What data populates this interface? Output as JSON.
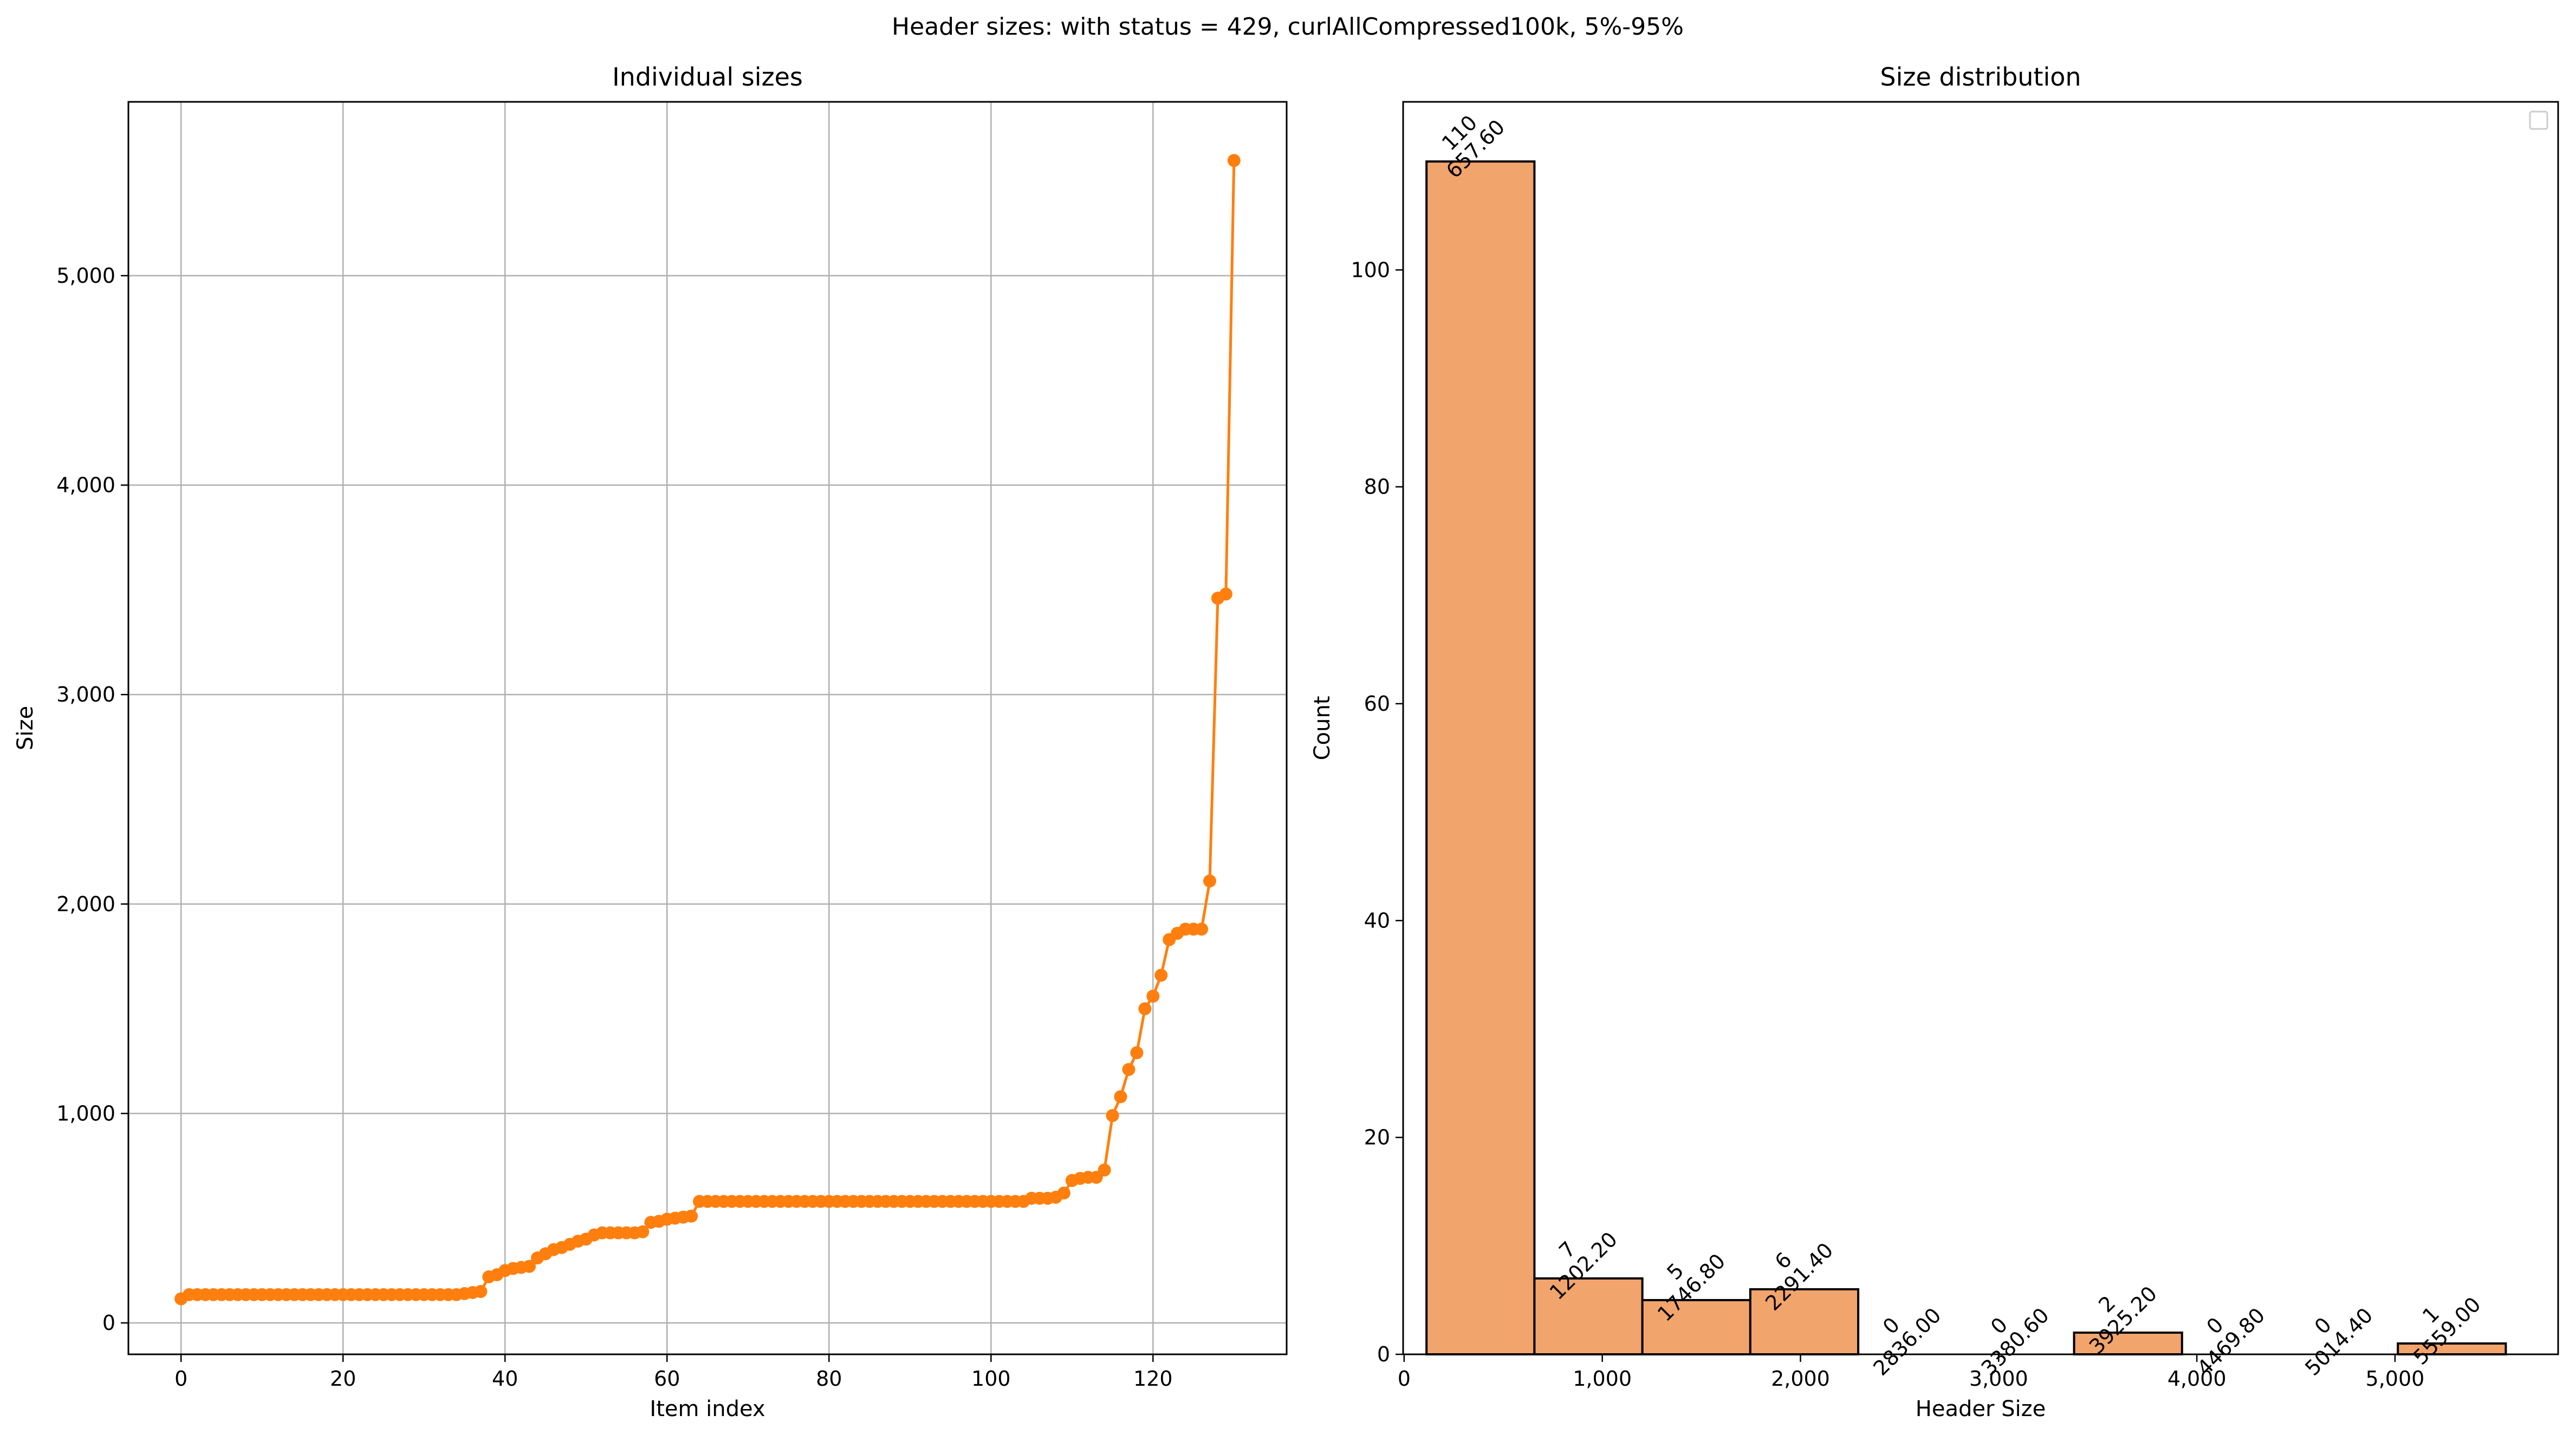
{
  "figure_title": "Header sizes: with status = 429, curlAllCompressed100k, 5%-95%",
  "colors": {
    "line": "#ff7f0e",
    "bar_fill": "#f2a46d",
    "bar_edge": "#000000",
    "grid": "#b0b0b0",
    "axes": "#000000"
  },
  "chart_data": [
    {
      "type": "line",
      "title": "Individual sizes",
      "xlabel": "Item index",
      "ylabel": "Size",
      "xlim": [
        -6.5,
        136.5
      ],
      "ylim": [
        -150,
        5830
      ],
      "xticks": [
        0,
        20,
        40,
        60,
        80,
        100,
        120
      ],
      "xtick_labels": [
        "0",
        "20",
        "40",
        "60",
        "80",
        "100",
        "120"
      ],
      "yticks": [
        0,
        1000,
        2000,
        3000,
        4000,
        5000
      ],
      "ytick_labels": [
        "0",
        "1,000",
        "2,000",
        "3,000",
        "4,000",
        "5,000"
      ],
      "grid": true,
      "marker": "circle",
      "series": [
        {
          "values": [
            115,
            135,
            135,
            135,
            135,
            135,
            135,
            135,
            135,
            135,
            135,
            135,
            135,
            135,
            135,
            135,
            135,
            135,
            135,
            135,
            135,
            135,
            135,
            135,
            135,
            135,
            135,
            135,
            135,
            135,
            135,
            135,
            135,
            135,
            135,
            140,
            145,
            150,
            220,
            230,
            250,
            260,
            265,
            270,
            310,
            330,
            350,
            360,
            375,
            390,
            400,
            420,
            430,
            430,
            430,
            430,
            430,
            435,
            480,
            485,
            495,
            500,
            505,
            510,
            580,
            580,
            580,
            580,
            580,
            580,
            580,
            580,
            580,
            580,
            580,
            580,
            580,
            580,
            580,
            580,
            580,
            580,
            580,
            580,
            580,
            580,
            580,
            580,
            580,
            580,
            580,
            580,
            580,
            580,
            580,
            580,
            580,
            580,
            580,
            580,
            580,
            580,
            580,
            580,
            580,
            595,
            595,
            595,
            600,
            620,
            680,
            690,
            695,
            695,
            730,
            990,
            1080,
            1210,
            1290,
            1500,
            1560,
            1660,
            1830,
            1860,
            1880,
            1880,
            1880,
            2110,
            3460,
            3480,
            5550
          ]
        }
      ]
    },
    {
      "type": "bar",
      "title": "Size distribution",
      "xlabel": "Header Size",
      "ylabel": "Count",
      "xlim": [
        -5,
        5823
      ],
      "ylim": [
        0,
        115.5
      ],
      "xticks": [
        0,
        1000,
        2000,
        3000,
        4000,
        5000
      ],
      "xtick_labels": [
        "0",
        "1,000",
        "2,000",
        "3,000",
        "4,000",
        "5,000"
      ],
      "yticks": [
        0,
        20,
        40,
        60,
        80,
        100
      ],
      "ytick_labels": [
        "0",
        "20",
        "40",
        "60",
        "80",
        "100"
      ],
      "grid": false,
      "legend": "top-right",
      "bin_edges": [
        113,
        657.6,
        1202.2,
        1746.8,
        2291.4,
        2836.0,
        3380.6,
        3925.2,
        4469.8,
        5014.4,
        5559.0
      ],
      "values": [
        110,
        7,
        5,
        6,
        0,
        0,
        2,
        0,
        0,
        1
      ],
      "bar_labels": [
        [
          "110",
          "657.60"
        ],
        [
          "7",
          "1202.20"
        ],
        [
          "5",
          "1746.80"
        ],
        [
          "6",
          "2291.40"
        ],
        [
          "0",
          "2836.00"
        ],
        [
          "0",
          "3380.60"
        ],
        [
          "2",
          "3925.20"
        ],
        [
          "0",
          "4469.80"
        ],
        [
          "0",
          "5014.40"
        ],
        [
          "1",
          "5559.00"
        ]
      ]
    }
  ]
}
